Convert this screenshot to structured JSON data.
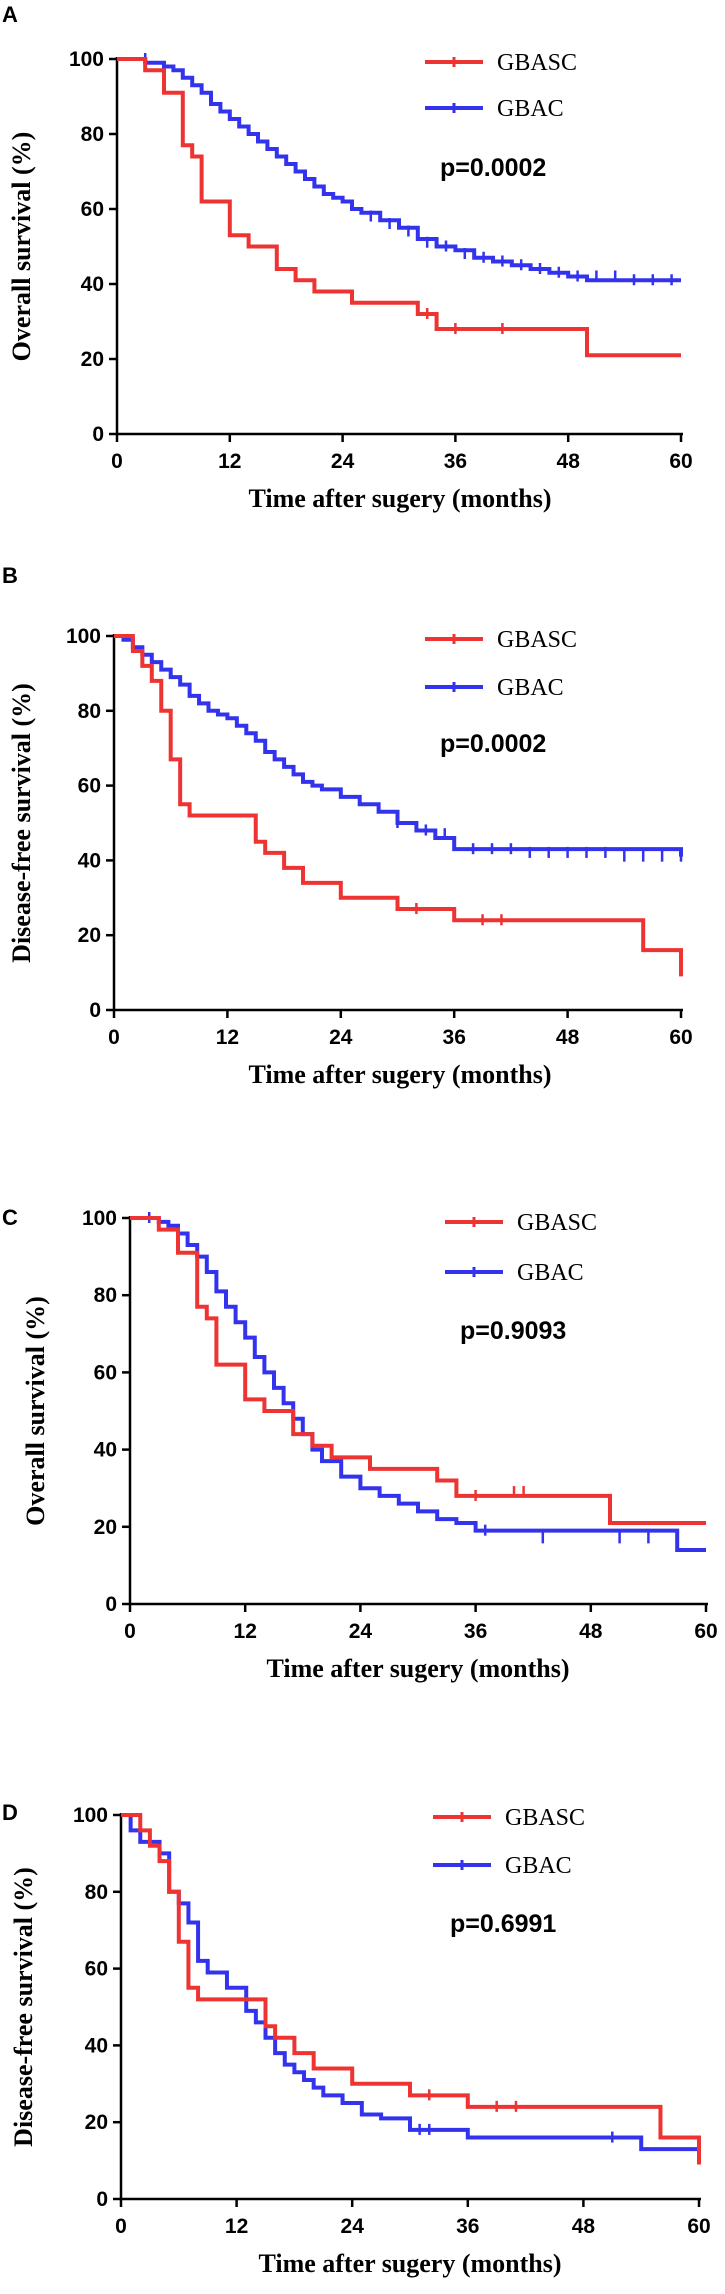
{
  "figure_title": "",
  "colors": {
    "GBASC": "#ee3333",
    "GBAC": "#3333ee",
    "axis": "#000000"
  },
  "chart_data": [
    {
      "panel": "A",
      "type": "line",
      "title": "",
      "xlabel": "Time after sugery (months)",
      "ylabel": "Overall survival (%)",
      "xlim": [
        0,
        60
      ],
      "ylim": [
        0,
        100
      ],
      "xticks": [
        "0",
        "12",
        "24",
        "36",
        "48",
        "60"
      ],
      "yticks": [
        "0",
        "20",
        "40",
        "60",
        "80",
        "100"
      ],
      "p_value": "p=0.0002",
      "legend": [
        "GBASC",
        "GBAC"
      ],
      "series": [
        {
          "name": "GBASC",
          "color": "#ee3333",
          "x": [
            0,
            3,
            5,
            7,
            8,
            9,
            12,
            14,
            17,
            19,
            21,
            25,
            32,
            34,
            50,
            60
          ],
          "y": [
            100,
            97,
            91,
            77,
            74,
            62,
            53,
            50,
            44,
            41,
            38,
            35,
            32,
            28,
            21,
            21
          ],
          "censored": [
            [
              33,
              32
            ],
            [
              36,
              28
            ],
            [
              41,
              28
            ]
          ]
        },
        {
          "name": "GBAC",
          "color": "#3333ee",
          "x": [
            0,
            3,
            5,
            6,
            7,
            8,
            9,
            10,
            11,
            12,
            13,
            14,
            15,
            16,
            17,
            18,
            19,
            20,
            21,
            22,
            23,
            24,
            25,
            26,
            28,
            30,
            32,
            34,
            36,
            38,
            40,
            42,
            44,
            46,
            48,
            50,
            60
          ],
          "y": [
            100,
            99,
            98,
            97,
            95,
            93,
            91,
            88,
            86,
            84,
            82,
            80,
            78,
            76,
            74,
            72,
            70,
            68,
            66,
            64,
            63,
            62,
            60,
            59,
            57,
            55,
            52,
            50,
            49,
            47,
            46,
            45,
            44,
            43,
            42,
            41,
            41
          ],
          "censored": [
            [
              3,
              100
            ],
            [
              27,
              58
            ],
            [
              29,
              56
            ],
            [
              31,
              54
            ],
            [
              33,
              51
            ],
            [
              35,
              50
            ],
            [
              37,
              48
            ],
            [
              39,
              47
            ],
            [
              41,
              46
            ],
            [
              43,
              45
            ],
            [
              45,
              44
            ],
            [
              47,
              43
            ],
            [
              49,
              42
            ],
            [
              51,
              42
            ],
            [
              53,
              42
            ],
            [
              55,
              41
            ],
            [
              57,
              41
            ],
            [
              59,
              41
            ]
          ]
        }
      ]
    },
    {
      "panel": "B",
      "type": "line",
      "title": "",
      "xlabel": "Time after sugery (months)",
      "ylabel": "Disease-free survival (%)",
      "xlim": [
        0,
        60
      ],
      "ylim": [
        0,
        100
      ],
      "xticks": [
        "0",
        "12",
        "24",
        "36",
        "48",
        "60"
      ],
      "yticks": [
        "0",
        "20",
        "40",
        "60",
        "80",
        "100"
      ],
      "p_value": "p=0.0002",
      "legend": [
        "GBASC",
        "GBAC"
      ],
      "series": [
        {
          "name": "GBASC",
          "color": "#ee3333",
          "x": [
            0,
            2,
            3,
            4,
            5,
            6,
            7,
            8,
            15,
            16,
            18,
            20,
            24,
            30,
            36,
            56,
            60
          ],
          "y": [
            100,
            96,
            92,
            88,
            80,
            67,
            55,
            52,
            45,
            42,
            38,
            34,
            30,
            27,
            24,
            16,
            9
          ],
          "censored": [
            [
              32,
              27
            ],
            [
              39,
              24
            ],
            [
              41,
              24
            ]
          ]
        },
        {
          "name": "GBAC",
          "color": "#3333ee",
          "x": [
            0,
            1,
            2,
            3,
            4,
            5,
            6,
            7,
            8,
            9,
            10,
            11,
            12,
            13,
            14,
            15,
            16,
            17,
            18,
            19,
            20,
            21,
            22,
            24,
            26,
            28,
            30,
            32,
            34,
            36,
            60
          ],
          "y": [
            100,
            99,
            97,
            95,
            93,
            91,
            89,
            87,
            84,
            82,
            80,
            79,
            78,
            76,
            74,
            72,
            69,
            67,
            65,
            63,
            61,
            60,
            59,
            57,
            55,
            53,
            50,
            48,
            46,
            43,
            41
          ],
          "censored": [
            [
              30,
              50
            ],
            [
              33,
              48
            ],
            [
              35,
              47
            ],
            [
              38,
              43
            ],
            [
              40,
              43
            ],
            [
              42,
              43
            ],
            [
              44,
              42
            ],
            [
              46,
              42
            ],
            [
              48,
              42
            ],
            [
              50,
              42
            ],
            [
              52,
              42
            ],
            [
              54,
              41
            ],
            [
              56,
              41
            ],
            [
              58,
              41
            ],
            [
              60,
              41
            ]
          ]
        }
      ]
    },
    {
      "panel": "C",
      "type": "line",
      "title": "",
      "xlabel": "Time after sugery (months)",
      "ylabel": "Overall survival (%)",
      "xlim": [
        0,
        60
      ],
      "ylim": [
        0,
        100
      ],
      "xticks": [
        "0",
        "12",
        "24",
        "36",
        "48",
        "60"
      ],
      "yticks": [
        "0",
        "20",
        "40",
        "60",
        "80",
        "100"
      ],
      "p_value": "p=0.9093",
      "legend": [
        "GBASC",
        "GBAC"
      ],
      "series": [
        {
          "name": "GBASC",
          "color": "#ee3333",
          "x": [
            0,
            3,
            5,
            7,
            8,
            9,
            12,
            14,
            17,
            19,
            21,
            25,
            32,
            34,
            50,
            60
          ],
          "y": [
            100,
            97,
            91,
            77,
            74,
            62,
            53,
            50,
            44,
            41,
            38,
            35,
            32,
            28,
            21,
            21
          ],
          "censored": [
            [
              36,
              28
            ],
            [
              40,
              29
            ],
            [
              41,
              29
            ]
          ]
        },
        {
          "name": "GBAC",
          "color": "#3333ee",
          "x": [
            0,
            2,
            3,
            4,
            5,
            6,
            7,
            8,
            9,
            10,
            11,
            12,
            13,
            14,
            15,
            16,
            17,
            18,
            19,
            20,
            22,
            24,
            26,
            28,
            30,
            32,
            34,
            36,
            57,
            60
          ],
          "y": [
            100,
            100,
            99,
            98,
            96,
            93,
            90,
            86,
            81,
            77,
            73,
            69,
            64,
            60,
            56,
            52,
            48,
            44,
            40,
            37,
            33,
            30,
            28,
            26,
            24,
            22,
            21,
            19,
            14,
            14
          ],
          "censored": [
            [
              2,
              100
            ],
            [
              37,
              19
            ],
            [
              43,
              17
            ],
            [
              51,
              17
            ],
            [
              54,
              17
            ]
          ]
        }
      ]
    },
    {
      "panel": "D",
      "type": "line",
      "title": "",
      "xlabel": "Time after sugery (months)",
      "ylabel": "Disease-free survival (%)",
      "xlim": [
        0,
        60
      ],
      "ylim": [
        0,
        100
      ],
      "xticks": [
        "0",
        "12",
        "24",
        "36",
        "48",
        "60"
      ],
      "yticks": [
        "0",
        "20",
        "40",
        "60",
        "80",
        "100"
      ],
      "p_value": "p=0.6991",
      "legend": [
        "GBASC",
        "GBAC"
      ],
      "series": [
        {
          "name": "GBASC",
          "color": "#ee3333",
          "x": [
            0,
            2,
            3,
            4,
            5,
            6,
            7,
            8,
            15,
            16,
            18,
            20,
            24,
            30,
            36,
            56,
            60
          ],
          "y": [
            100,
            96,
            92,
            88,
            80,
            67,
            55,
            52,
            45,
            42,
            38,
            34,
            30,
            27,
            24,
            16,
            9
          ],
          "censored": [
            [
              32,
              27
            ],
            [
              39,
              24
            ],
            [
              41,
              24
            ]
          ]
        },
        {
          "name": "GBAC",
          "color": "#3333ee",
          "x": [
            0,
            1,
            2,
            4,
            5,
            6,
            7,
            8,
            9,
            11,
            13,
            14,
            15,
            16,
            17,
            18,
            19,
            20,
            21,
            23,
            25,
            27,
            30,
            36,
            54,
            60
          ],
          "y": [
            100,
            96,
            93,
            90,
            80,
            77,
            72,
            62,
            59,
            55,
            49,
            46,
            42,
            38,
            35,
            33,
            31,
            29,
            27,
            25,
            22,
            21,
            18,
            16,
            13,
            13
          ],
          "censored": [
            [
              31,
              18
            ],
            [
              32,
              18
            ],
            [
              51,
              16
            ]
          ]
        }
      ]
    }
  ]
}
